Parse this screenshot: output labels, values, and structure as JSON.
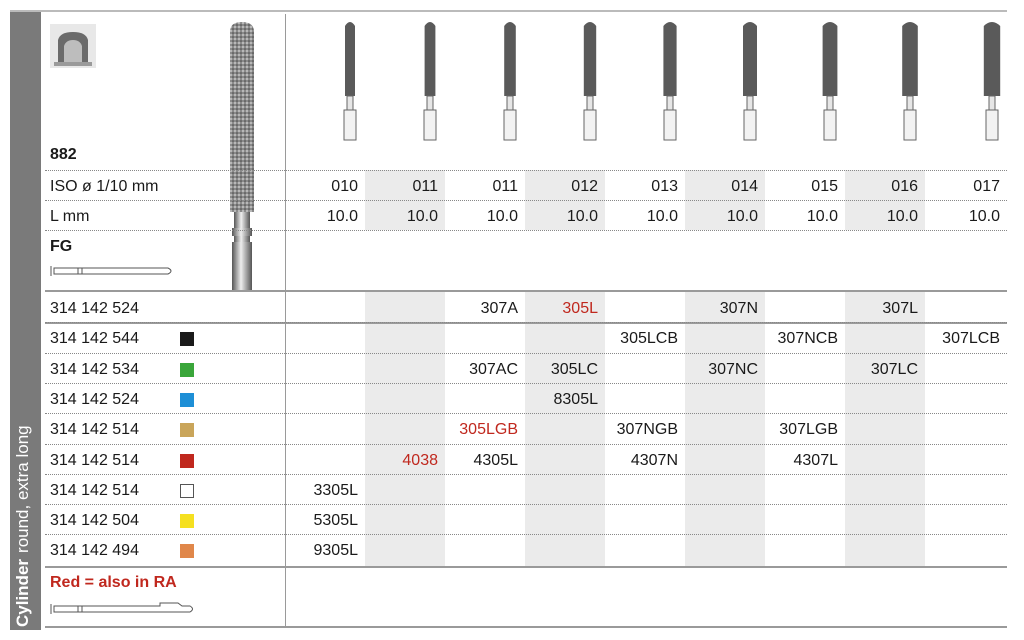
{
  "side": {
    "word1": "Cylinder",
    "word2": "round, extra long"
  },
  "header": {
    "code": "882",
    "handpiece": "FG"
  },
  "spec_rows": [
    {
      "label": "ISO ø 1/10 mm",
      "values": [
        "010",
        "011",
        "011",
        "012",
        "013",
        "014",
        "015",
        "016",
        "017"
      ]
    },
    {
      "label": "L mm",
      "values": [
        "10.0",
        "10.0",
        "10.0",
        "10.0",
        "10.0",
        "10.0",
        "10.0",
        "10.0",
        "10.0"
      ]
    }
  ],
  "rows": [
    {
      "ref": "314 142 524",
      "swatch": "",
      "cells": [
        "",
        "",
        "307A",
        "305L",
        "",
        "307N",
        "",
        "307L",
        ""
      ],
      "red": [
        false,
        false,
        false,
        true,
        false,
        false,
        false,
        false,
        false
      ]
    },
    {
      "ref": "314 142 544",
      "swatch": "#1a1a1a",
      "cells": [
        "",
        "",
        "",
        "",
        "305LCB",
        "",
        "307NCB",
        "",
        "307LCB"
      ],
      "red": [
        false,
        false,
        false,
        false,
        false,
        false,
        false,
        false,
        false
      ]
    },
    {
      "ref": "314 142 534",
      "swatch": "#3aa63a",
      "cells": [
        "",
        "",
        "307AC",
        "305LC",
        "",
        "307NC",
        "",
        "307LC",
        ""
      ],
      "red": [
        false,
        false,
        false,
        false,
        false,
        false,
        false,
        false,
        false
      ]
    },
    {
      "ref": "314 142 524",
      "swatch": "#1e8fd6",
      "cells": [
        "",
        "",
        "",
        "8305L",
        "",
        "",
        "",
        "",
        ""
      ],
      "red": [
        false,
        false,
        false,
        false,
        false,
        false,
        false,
        false,
        false
      ]
    },
    {
      "ref": "314 142 514",
      "swatch": "#c9a55a",
      "cells": [
        "",
        "",
        "305LGB",
        "",
        "307NGB",
        "",
        "307LGB",
        "",
        ""
      ],
      "red": [
        false,
        false,
        true,
        false,
        false,
        false,
        false,
        false,
        false
      ]
    },
    {
      "ref": "314 142 514",
      "swatch": "#c0281e",
      "cells": [
        "",
        "4038",
        "4305L",
        "",
        "4307N",
        "",
        "4307L",
        "",
        ""
      ],
      "red": [
        false,
        true,
        false,
        false,
        false,
        false,
        false,
        false,
        false
      ]
    },
    {
      "ref": "314 142 514",
      "swatch": "#ffffff",
      "cells": [
        "3305L",
        "",
        "",
        "",
        "",
        "",
        "",
        "",
        ""
      ],
      "red": [
        false,
        false,
        false,
        false,
        false,
        false,
        false,
        false,
        false
      ]
    },
    {
      "ref": "314 142 504",
      "swatch": "#f5e020",
      "cells": [
        "5305L",
        "",
        "",
        "",
        "",
        "",
        "",
        "",
        ""
      ],
      "red": [
        false,
        false,
        false,
        false,
        false,
        false,
        false,
        false,
        false
      ]
    },
    {
      "ref": "314 142 494",
      "swatch": "#e0874a",
      "cells": [
        "9305L",
        "",
        "",
        "",
        "",
        "",
        "",
        "",
        ""
      ],
      "red": [
        false,
        false,
        false,
        false,
        false,
        false,
        false,
        false,
        false
      ]
    }
  ],
  "legend": {
    "text": "Red = also in RA"
  },
  "colors": {
    "red": "#c0281e",
    "shade": "#ebebeb",
    "side": "#7a7a7a"
  },
  "icons": {
    "crown": "crown-icon",
    "fg_shank": "fg-shank-icon",
    "ra_shank": "ra-shank-icon",
    "bur": "diamond-bur-icon"
  }
}
